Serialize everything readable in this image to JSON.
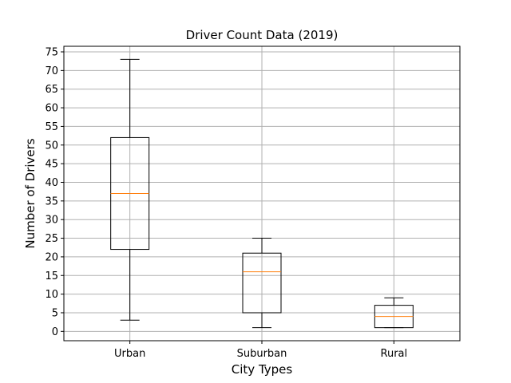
{
  "chart_data": {
    "type": "box",
    "title": "Driver Count Data (2019)",
    "xlabel": "City Types",
    "ylabel": "Number of Drivers",
    "ylim": [
      -2.5,
      76.5
    ],
    "yticks": [
      0,
      5,
      10,
      15,
      20,
      25,
      30,
      35,
      40,
      45,
      50,
      55,
      60,
      65,
      70,
      75
    ],
    "categories": [
      "Urban",
      "Suburban",
      "Rural"
    ],
    "series": [
      {
        "category": "Urban",
        "whisker_low": 3,
        "q1": 22,
        "median": 37,
        "q3": 52,
        "whisker_high": 73
      },
      {
        "category": "Suburban",
        "whisker_low": 1,
        "q1": 5,
        "median": 16,
        "q3": 21,
        "whisker_high": 25
      },
      {
        "category": "Rural",
        "whisker_low": 1,
        "q1": 1,
        "median": 4,
        "q3": 7,
        "whisker_high": 9
      }
    ],
    "grid": true,
    "colors": {
      "box": "#000000",
      "median": "#ff7f0e",
      "grid": "#b0b0b0",
      "axes": "#000000"
    }
  }
}
